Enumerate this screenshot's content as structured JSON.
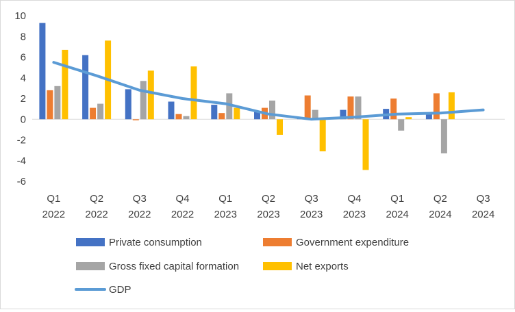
{
  "chart_data": {
    "type": "bar",
    "title": "",
    "xlabel": "",
    "ylabel": "",
    "ylim": [
      -6,
      10
    ],
    "yticks": [
      10,
      8,
      6,
      4,
      2,
      0,
      -2,
      -4,
      -6
    ],
    "grid": false,
    "categories": [
      {
        "q": "Q1",
        "y": "2022"
      },
      {
        "q": "Q2",
        "y": "2022"
      },
      {
        "q": "Q3",
        "y": "2022"
      },
      {
        "q": "Q4",
        "y": "2022"
      },
      {
        "q": "Q1",
        "y": "2023"
      },
      {
        "q": "Q2",
        "y": "2023"
      },
      {
        "q": "Q3",
        "y": "2023"
      },
      {
        "q": "Q4",
        "y": "2023"
      },
      {
        "q": "Q1",
        "y": "2024"
      },
      {
        "q": "Q2",
        "y": "2024"
      },
      {
        "q": "Q3",
        "y": "2024"
      }
    ],
    "series": [
      {
        "name": "Private consumption",
        "kind": "bar",
        "color": "#4472c4",
        "values": [
          9.3,
          6.2,
          2.9,
          1.7,
          1.4,
          0.7,
          0.1,
          0.9,
          1.0,
          0.5,
          null
        ]
      },
      {
        "name": "Government expenditure",
        "kind": "bar",
        "color": "#ed7d31",
        "values": [
          2.8,
          1.1,
          -0.1,
          0.5,
          0.6,
          1.1,
          2.3,
          2.2,
          2.0,
          2.5,
          null
        ]
      },
      {
        "name": "Gross fixed capital formation",
        "kind": "bar",
        "color": "#a5a5a5",
        "values": [
          3.2,
          1.5,
          3.7,
          0.3,
          2.5,
          1.8,
          0.9,
          2.2,
          -1.1,
          -3.3,
          null
        ]
      },
      {
        "name": "Net exports",
        "kind": "bar",
        "color": "#ffc000",
        "values": [
          6.7,
          7.6,
          4.7,
          5.1,
          1.1,
          -1.5,
          -3.1,
          -4.9,
          0.2,
          2.6,
          null
        ]
      },
      {
        "name": "GDP",
        "kind": "line",
        "color": "#5b9bd5",
        "values": [
          5.5,
          4.2,
          2.8,
          2.0,
          1.5,
          0.5,
          0.0,
          0.2,
          0.5,
          0.6,
          0.9
        ]
      }
    ],
    "legend": {
      "position": "bottom",
      "items": [
        "Private consumption",
        "Government expenditure",
        "Gross fixed capital formation",
        "Net exports",
        "GDP"
      ]
    }
  }
}
